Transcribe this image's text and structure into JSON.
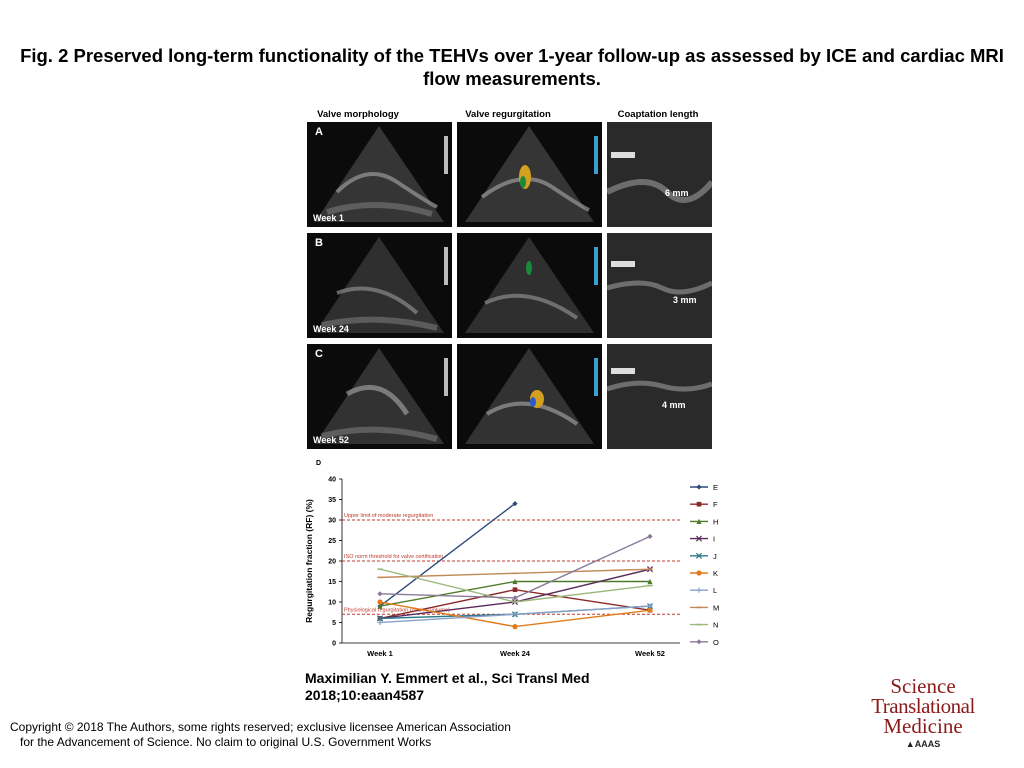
{
  "figure": {
    "title": "Fig. 2 Preserved long-term functionality of the TEHVs over 1-year follow-up as assessed by ICE and cardiac MRI flow measurements.",
    "columns": [
      "Valve morphology",
      "Valve regurgitation",
      "Coaptation length"
    ],
    "rows": [
      {
        "letter": "A",
        "week": "Week 1",
        "coaptation": "6 mm"
      },
      {
        "letter": "B",
        "week": "Week 24",
        "coaptation": "3 mm"
      },
      {
        "letter": "C",
        "week": "Week 52",
        "coaptation": "4 mm"
      }
    ],
    "panel_d_letter": "D"
  },
  "chart_data": {
    "type": "line",
    "ylabel": "Regurgitation fraction (RF) (%)",
    "xlabel": "",
    "categories": [
      "Week 1",
      "Week 24",
      "Week 52"
    ],
    "ylim": [
      0,
      40
    ],
    "yticks": [
      0,
      5,
      10,
      15,
      20,
      25,
      30,
      35,
      40
    ],
    "grid": false,
    "legend_position": "right",
    "reference_lines": [
      {
        "y": 30,
        "label": "Upper limit of moderate regurgitation",
        "color": "#c0392b"
      },
      {
        "y": 20,
        "label": "ISO norm threshold for valve certification",
        "color": "#c0392b"
      },
      {
        "y": 7,
        "label": "Physiological regurgitation (closing volume)",
        "color": "#c0392b"
      }
    ],
    "series": [
      {
        "name": "E",
        "color": "#2e4a7a",
        "marker": "diamond",
        "values": [
          9,
          34,
          null
        ]
      },
      {
        "name": "F",
        "color": "#8b2a2a",
        "marker": "square",
        "values": [
          6,
          13,
          8
        ]
      },
      {
        "name": "H",
        "color": "#4f7a2a",
        "marker": "triangle",
        "values": [
          9,
          15,
          15
        ]
      },
      {
        "name": "I",
        "color": "#5a2a5a",
        "marker": "x",
        "values": [
          6,
          10,
          18
        ]
      },
      {
        "name": "J",
        "color": "#2a7a8a",
        "marker": "x",
        "values": [
          6,
          7,
          9
        ]
      },
      {
        "name": "K",
        "color": "#e07b1a",
        "marker": "circle",
        "values": [
          10,
          4,
          8
        ]
      },
      {
        "name": "L",
        "color": "#8aa0c8",
        "marker": "plus",
        "values": [
          5,
          7,
          9
        ]
      },
      {
        "name": "M",
        "color": "#c08a5a",
        "marker": "dash",
        "values": [
          16,
          17,
          18
        ]
      },
      {
        "name": "N",
        "color": "#9ab87a",
        "marker": "dash",
        "values": [
          18,
          10,
          14
        ]
      },
      {
        "name": "O",
        "color": "#8a7a9a",
        "marker": "diamond",
        "values": [
          12,
          11,
          26
        ]
      }
    ]
  },
  "citation": {
    "line1": "Maximilian Y. Emmert et al., Sci Transl Med",
    "line2": "2018;10:eaan4587"
  },
  "copyright": {
    "line1": "Copyright © 2018 The Authors, some rights reserved; exclusive licensee American Association",
    "line2": "for the Advancement of Science. No claim to original U.S. Government Works"
  },
  "logo": {
    "line1": "Science",
    "line2": "Translational",
    "line3": "Medicine",
    "publisher": "AAAS"
  },
  "colors": {
    "reference_line": "#c0392b",
    "logo": "#8b1a1a"
  }
}
